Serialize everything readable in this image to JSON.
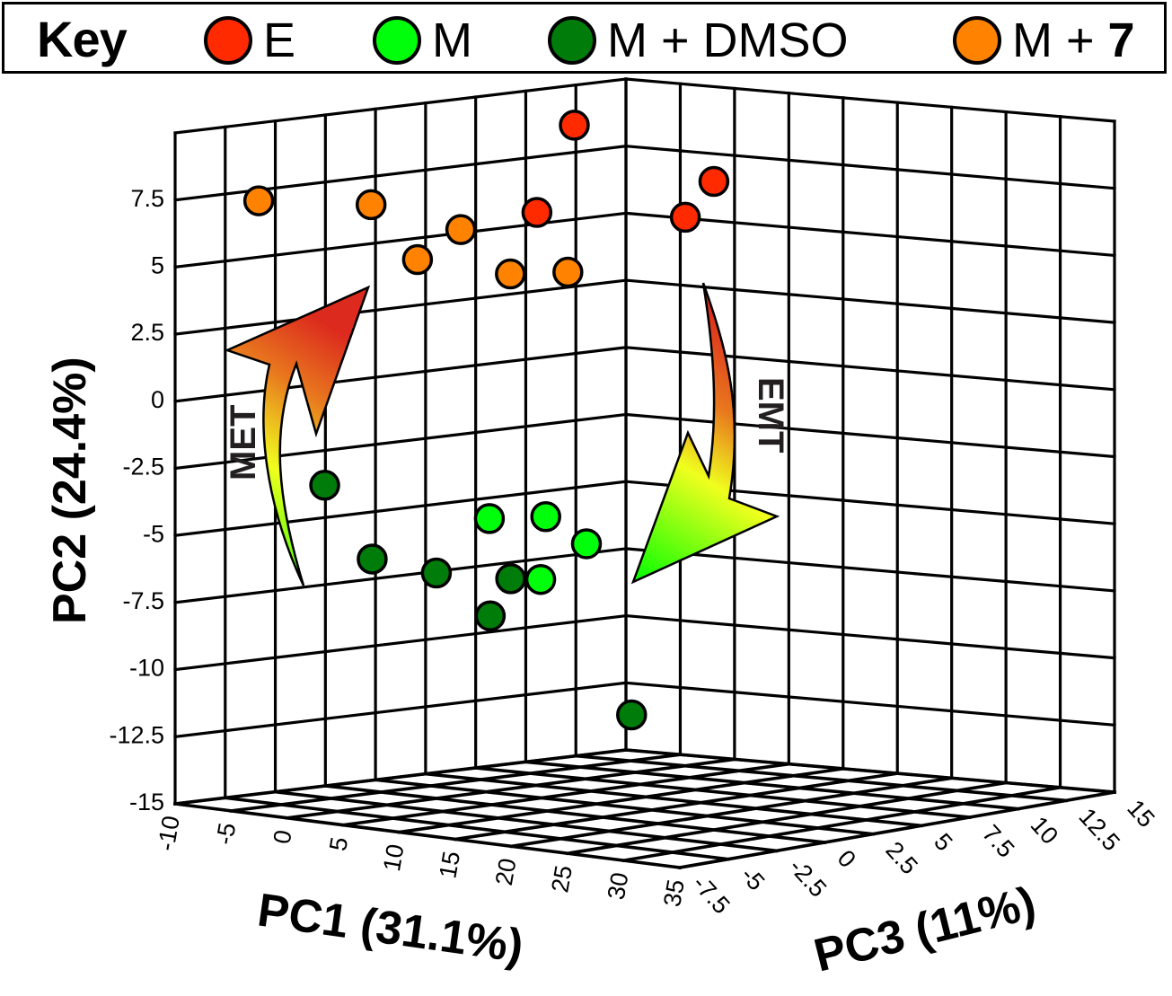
{
  "chart_data": {
    "type": "scatter",
    "projection": "3d",
    "title": "",
    "legend": {
      "title": "Key",
      "placement": "top",
      "entries": [
        {
          "name": "E",
          "color": "#ff2a00"
        },
        {
          "name": "M",
          "color": "#00ff0a"
        },
        {
          "name": "M + DMSO",
          "color": "#007c0a"
        },
        {
          "name": "M + 7",
          "color": "#ff8300"
        }
      ]
    },
    "axes": {
      "x": {
        "label": "PC1 (31.1%)",
        "range": [
          -10,
          35
        ],
        "ticks": [
          "-10",
          "-5",
          "0",
          "5",
          "10",
          "15",
          "20",
          "25",
          "30",
          "35"
        ]
      },
      "y": {
        "label": "PC2 (24.4%)",
        "range": [
          -15,
          10
        ],
        "ticks": [
          "-15",
          "-12.5",
          "-10",
          "-7.5",
          "-5",
          "-2.5",
          "0",
          "2.5",
          "5",
          "7.5"
        ]
      },
      "z": {
        "label": "PC3 (11%)",
        "range": [
          -7.5,
          15
        ],
        "ticks": [
          "-7.5",
          "-5",
          "-2.5",
          "0",
          "2.5",
          "5",
          "7.5",
          "10",
          "12.5",
          "15"
        ]
      }
    },
    "grid": true,
    "series": [
      {
        "name": "E",
        "color": "#ff2a00",
        "points": [
          {
            "pc1": 3.5,
            "pc2": 9.75,
            "pc3": 5
          },
          {
            "pc1": 4.6,
            "pc2": 6.8,
            "pc3": 2.5
          },
          {
            "pc1": 9.1,
            "pc2": 6.3,
            "pc3": 7.5
          },
          {
            "pc1": 7.2,
            "pc2": 7.3,
            "pc3": 10
          }
        ]
      },
      {
        "name": "M",
        "color": "#00ff0a",
        "points": [
          {
            "pc1": 0.3,
            "pc2": -4.8,
            "pc3": 2.5
          },
          {
            "pc1": 5.4,
            "pc2": -4.5,
            "pc3": 2.5
          },
          {
            "pc1": 4.6,
            "pc2": -5.8,
            "pc3": 5
          },
          {
            "pc1": 9.4,
            "pc2": -6.4,
            "pc3": 0
          }
        ]
      },
      {
        "name": "M + DMSO",
        "color": "#007c0a",
        "points": [
          {
            "pc1": -1.1,
            "pc2": -2.9,
            "pc3": -5
          },
          {
            "pc1": -1.3,
            "pc2": -5.9,
            "pc3": -2.5
          },
          {
            "pc1": 0.0,
            "pc2": -6.6,
            "pc3": 0
          },
          {
            "pc1": 6.7,
            "pc2": -6.5,
            "pc3": 0
          },
          {
            "pc1": 9.3,
            "pc2": -7.5,
            "pc3": -2.5
          },
          {
            "pc1": 8.7,
            "pc2": -12.0,
            "pc3": 5
          }
        ]
      },
      {
        "name": "M + 7",
        "color": "#ff8300",
        "points": [
          {
            "pc1": -7.0,
            "pc2": 7.4,
            "pc3": -5
          },
          {
            "pc1": -1.4,
            "pc2": 7.3,
            "pc3": -2.5
          },
          {
            "pc1": -1.7,
            "pc2": 5.0,
            "pc3": 0
          },
          {
            "pc1": 2.2,
            "pc2": 6.3,
            "pc3": 0
          },
          {
            "pc1": 2.2,
            "pc2": 4.4,
            "pc3": 2.5
          },
          {
            "pc1": 7.4,
            "pc2": 4.7,
            "pc3": 2.5
          }
        ]
      }
    ],
    "annotations": [
      {
        "text": "MET",
        "type": "curved-arrow",
        "direction": "up",
        "from_color": "#00ff00",
        "to_color": "#dc2a1e"
      },
      {
        "text": "EMT",
        "type": "curved-arrow",
        "direction": "down",
        "from_color": "#dc2a1e",
        "to_color": "#00ff00"
      }
    ]
  }
}
